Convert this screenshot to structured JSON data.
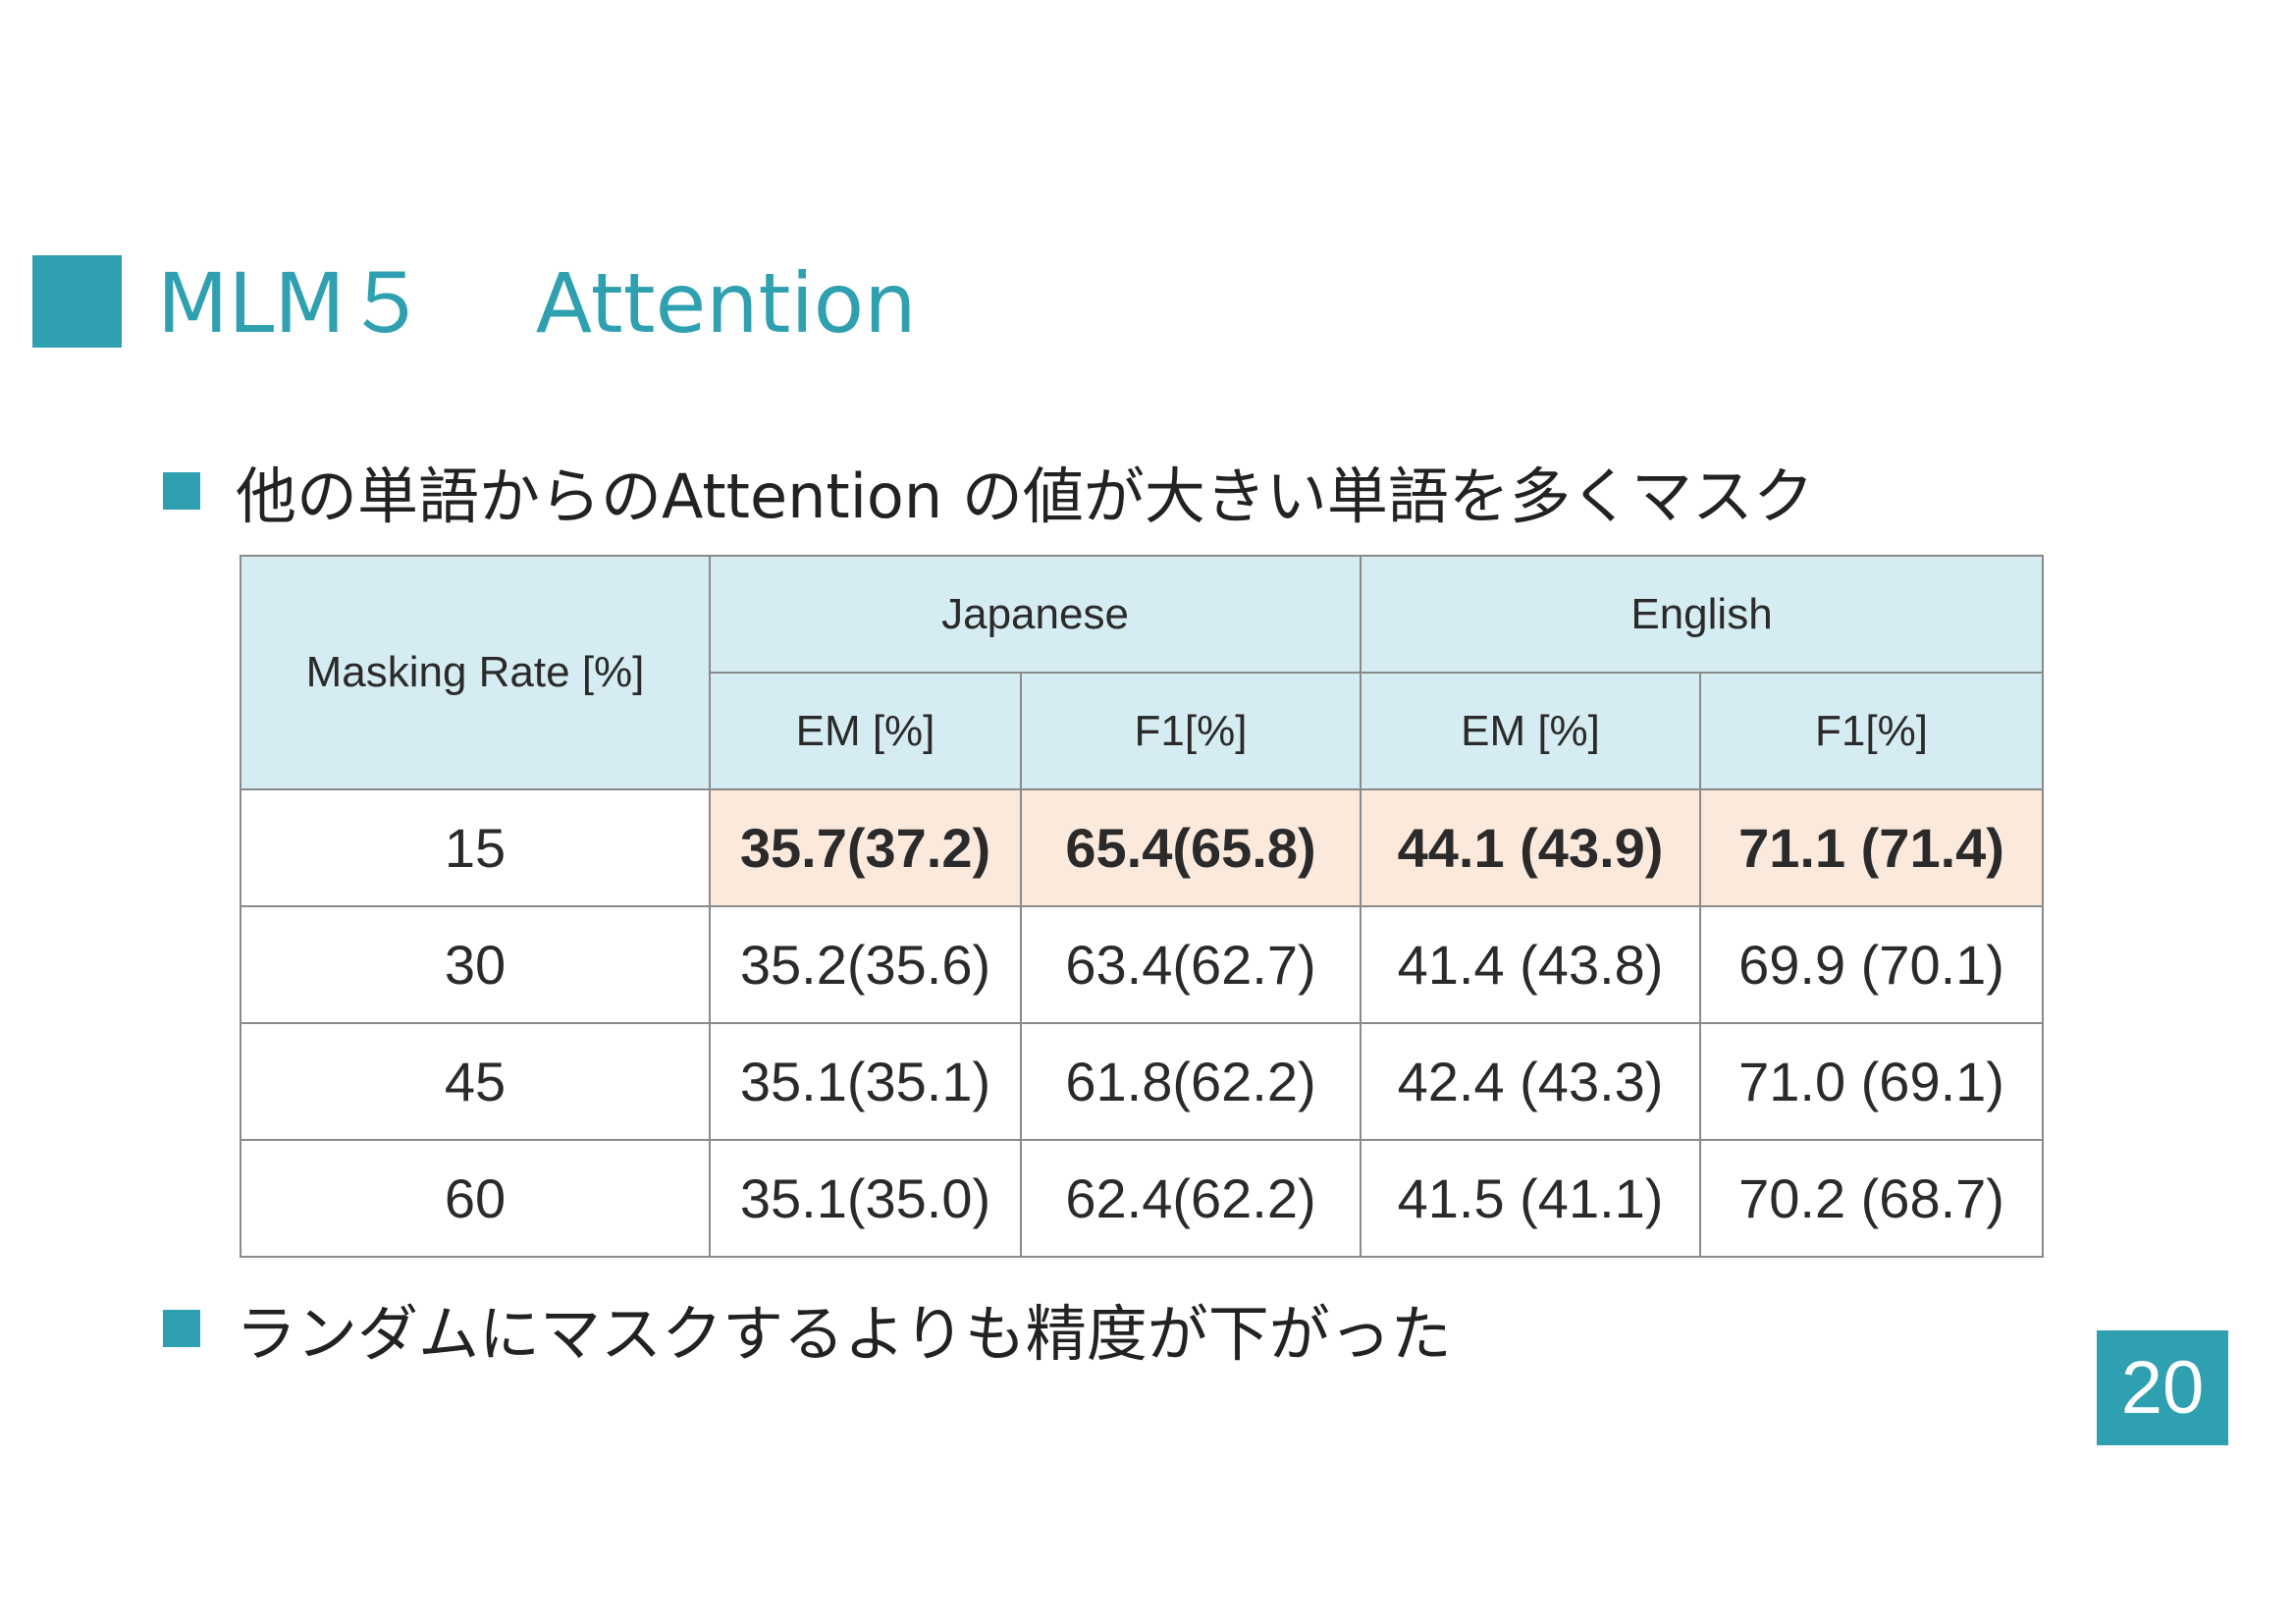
{
  "slide": {
    "title_left": "MLM５",
    "title_right": "Attention",
    "bullet_1": "他の単語からのAttention の値が大きい単語を多くマスク",
    "bullet_2": "ランダムにマスクするよりも精度が下がった",
    "page_number": "20"
  },
  "table": {
    "row_header": "Masking Rate [%]",
    "groups": [
      "Japanese",
      "English"
    ],
    "subheaders": [
      "EM [%]",
      "F1[%]",
      "EM [%]",
      "F1[%]"
    ],
    "rows": [
      {
        "rate": "15",
        "cells": [
          "35.7(37.2)",
          "65.4(65.8)",
          "44.1 (43.9)",
          "71.1 (71.4)"
        ]
      },
      {
        "rate": "30",
        "cells": [
          "35.2(35.6)",
          "63.4(62.7)",
          "41.4 (43.8)",
          "69.9 (70.1)"
        ]
      },
      {
        "rate": "45",
        "cells": [
          "35.1(35.1)",
          "61.8(62.2)",
          "42.4 (43.3)",
          "71.0 (69.1)"
        ]
      },
      {
        "rate": "60",
        "cells": [
          "35.1(35.0)",
          "62.4(62.2)",
          "41.5 (41.1)",
          "70.2 (68.7)"
        ]
      }
    ]
  },
  "colors": {
    "accent": "#2fa0b0",
    "header_fill": "#d5edf2",
    "highlight_fill": "#fbe9dc"
  }
}
